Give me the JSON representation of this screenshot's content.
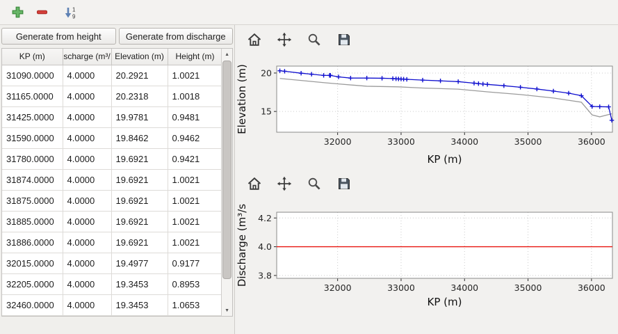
{
  "main_toolbar": {
    "sort_digit_top": "1",
    "sort_digit_bottom": "9"
  },
  "buttons": {
    "generate_from_height": "Generate from height",
    "generate_from_discharge": "Generate from discharge"
  },
  "table": {
    "columns": [
      "KP (m)",
      "scharge (m³/",
      "Elevation (m)",
      "Height (m)"
    ],
    "rows": [
      [
        "31090.0000",
        "4.0000",
        "20.2921",
        "1.0021"
      ],
      [
        "31165.0000",
        "4.0000",
        "20.2318",
        "1.0018"
      ],
      [
        "31425.0000",
        "4.0000",
        "19.9781",
        "0.9481"
      ],
      [
        "31590.0000",
        "4.0000",
        "19.8462",
        "0.9462"
      ],
      [
        "31780.0000",
        "4.0000",
        "19.6921",
        "0.9421"
      ],
      [
        "31874.0000",
        "4.0000",
        "19.6921",
        "1.0021"
      ],
      [
        "31875.0000",
        "4.0000",
        "19.6921",
        "1.0021"
      ],
      [
        "31885.0000",
        "4.0000",
        "19.6921",
        "1.0021"
      ],
      [
        "31886.0000",
        "4.0000",
        "19.6921",
        "1.0021"
      ],
      [
        "32015.0000",
        "4.0000",
        "19.4977",
        "0.9177"
      ],
      [
        "32205.0000",
        "4.0000",
        "19.3453",
        "0.8953"
      ],
      [
        "32460.0000",
        "4.0000",
        "19.3453",
        "1.0653"
      ]
    ]
  },
  "colors": {
    "water_line_blue": "#1010cf",
    "bed_line_gray": "#9b9b9b",
    "discharge_line_red": "#e8140f",
    "add_icon_green": "#67b567",
    "remove_icon_red": "#d43f3a",
    "sort_arrow_blue": "#5d81b4"
  },
  "chart_data": [
    {
      "type": "line",
      "title": "",
      "xlabel": "KP (m)",
      "ylabel": "Elevation (m)",
      "xlim": [
        31040,
        36330
      ],
      "ylim": [
        12.3,
        20.9
      ],
      "xtick_vals": [
        32000,
        33000,
        34000,
        35000,
        36000
      ],
      "xtick_labels": [
        "32000",
        "33000",
        "34000",
        "35000",
        "36000"
      ],
      "ytick_vals": [
        15,
        20
      ],
      "ytick_labels": [
        "15",
        "20"
      ],
      "grid": true,
      "legend": "none",
      "series": [
        {
          "name": "bed elevation",
          "color": "#9b9b9b",
          "marker": "",
          "x": [
            31090,
            31425,
            31780,
            32015,
            32460,
            32960,
            33340,
            33900,
            34360,
            34880,
            35400,
            35840,
            36010,
            36130,
            36270,
            36320
          ],
          "y": [
            19.29,
            19.03,
            18.75,
            18.58,
            18.28,
            18.2,
            18.05,
            17.9,
            17.55,
            17.2,
            16.75,
            16.2,
            14.55,
            14.3,
            14.6,
            14.7
          ]
        },
        {
          "name": "water elevation",
          "color": "#1010cf",
          "marker": "+",
          "x": [
            31090,
            31165,
            31425,
            31590,
            31780,
            31874,
            31875,
            31885,
            31886,
            32015,
            32205,
            32460,
            32700,
            32870,
            32920,
            32960,
            33000,
            33040,
            33090,
            33340,
            33620,
            33900,
            34150,
            34220,
            34290,
            34360,
            34620,
            34880,
            35140,
            35400,
            35640,
            35840,
            36010,
            36130,
            36270,
            36320
          ],
          "y": [
            20.2921,
            20.2318,
            19.9781,
            19.8462,
            19.6921,
            19.6921,
            19.6921,
            19.6921,
            19.6921,
            19.4977,
            19.3453,
            19.3453,
            19.32,
            19.28,
            19.25,
            19.23,
            19.22,
            19.2,
            19.18,
            19.08,
            18.98,
            18.88,
            18.68,
            18.62,
            18.57,
            18.52,
            18.35,
            18.15,
            17.92,
            17.65,
            17.38,
            17.05,
            15.65,
            15.62,
            15.6,
            13.85
          ]
        }
      ]
    },
    {
      "type": "line",
      "title": "",
      "xlabel": "KP (m)",
      "ylabel": "Discharge (m³/s",
      "xlim": [
        31040,
        36330
      ],
      "ylim": [
        3.78,
        4.24
      ],
      "xtick_vals": [
        32000,
        33000,
        34000,
        35000,
        36000
      ],
      "xtick_labels": [
        "32000",
        "33000",
        "34000",
        "35000",
        "36000"
      ],
      "ytick_vals": [
        3.8,
        4.0,
        4.2
      ],
      "ytick_labels": [
        "3.8",
        "4.0",
        "4.2"
      ],
      "grid": true,
      "legend": "none",
      "series": [
        {
          "name": "discharge",
          "color": "#e8140f",
          "marker": "",
          "x": [
            31040,
            36330
          ],
          "y": [
            4.0,
            4.0
          ]
        }
      ]
    }
  ]
}
